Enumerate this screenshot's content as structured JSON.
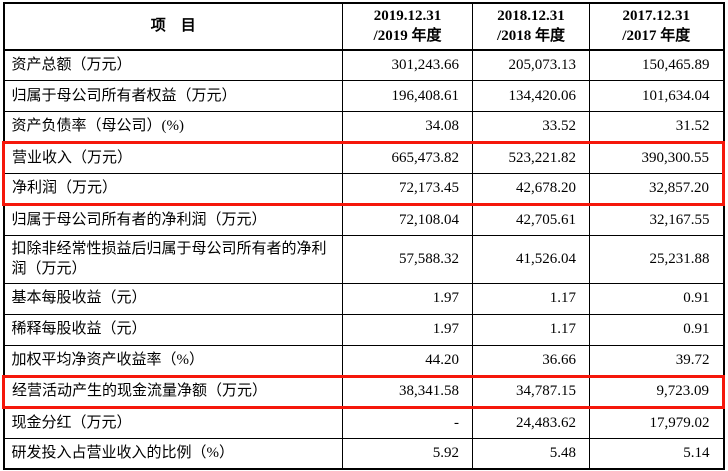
{
  "table": {
    "header": {
      "item": "项　目",
      "periods": [
        {
          "line1": "2019.12.31",
          "line2": "/2019 年度"
        },
        {
          "line1": "2018.12.31",
          "line2": "/2018 年度"
        },
        {
          "line1": "2017.12.31",
          "line2": "/2017 年度"
        }
      ]
    },
    "rows": [
      {
        "label": "资产总额（万元）",
        "values": [
          "301,243.66",
          "205,073.13",
          "150,465.89"
        ],
        "highlight": ""
      },
      {
        "label": "归属于母公司所有者权益（万元）",
        "values": [
          "196,408.61",
          "134,420.06",
          "101,634.04"
        ],
        "highlight": ""
      },
      {
        "label": "资产负债率（母公司）(%)",
        "values": [
          "34.08",
          "33.52",
          "31.52"
        ],
        "highlight": ""
      },
      {
        "label": "营业收入（万元）",
        "values": [
          "665,473.82",
          "523,221.82",
          "390,300.55"
        ],
        "highlight": "start"
      },
      {
        "label": "净利润（万元）",
        "values": [
          "72,173.45",
          "42,678.20",
          "32,857.20"
        ],
        "highlight": "end"
      },
      {
        "label": "归属于母公司所有者的净利润（万元）",
        "values": [
          "72,108.04",
          "42,705.61",
          "32,167.55"
        ],
        "highlight": ""
      },
      {
        "label": "扣除非经常性损益后归属于母公司所有者的净利润（万元）",
        "values": [
          "57,588.32",
          "41,526.04",
          "25,231.88"
        ],
        "highlight": "",
        "tall": true
      },
      {
        "label": "基本每股收益（元）",
        "values": [
          "1.97",
          "1.17",
          "0.91"
        ],
        "highlight": ""
      },
      {
        "label": "稀释每股收益（元）",
        "values": [
          "1.97",
          "1.17",
          "0.91"
        ],
        "highlight": ""
      },
      {
        "label": "加权平均净资产收益率（%）",
        "values": [
          "44.20",
          "36.66",
          "39.72"
        ],
        "highlight": ""
      },
      {
        "label": "经营活动产生的现金流量净额（万元）",
        "values": [
          "38,341.58",
          "34,787.15",
          "9,723.09"
        ],
        "highlight": "solo"
      },
      {
        "label": "现金分红（万元）",
        "values": [
          "-",
          "24,483.62",
          "17,979.02"
        ],
        "highlight": ""
      },
      {
        "label": "研发投入占营业收入的比例（%）",
        "values": [
          "5.92",
          "5.48",
          "5.14"
        ],
        "highlight": ""
      }
    ],
    "highlight_color": "#f5170b"
  }
}
